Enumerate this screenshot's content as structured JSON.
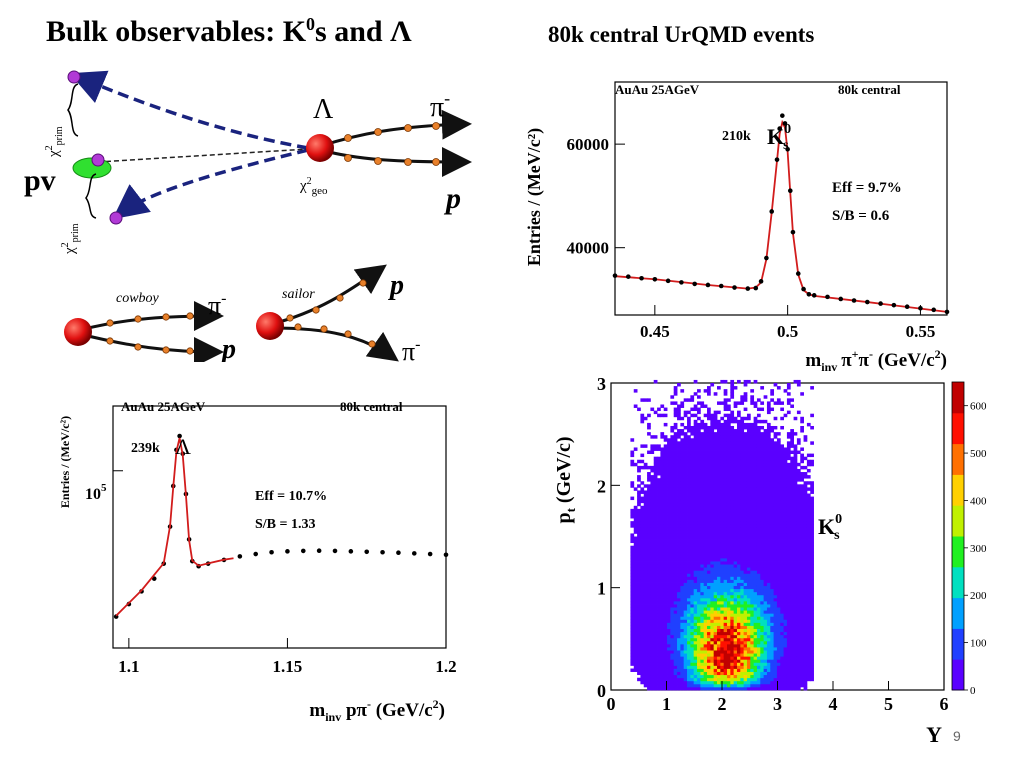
{
  "slide": {
    "title_main": "Bulk observables: K",
    "title_sup": "0",
    "title_tail": "s and Λ",
    "subtitle": "80k central UrQMD events",
    "page_number": "9"
  },
  "diagram": {
    "pv_label": "pv",
    "chi2_prim_label": "χ",
    "chi2_sup": "2",
    "prim_sub": "prim",
    "geo_sub": "geo",
    "lambda_label": "Λ",
    "pi_minus_label": "π",
    "minus_sup": "-",
    "p_label": "p",
    "cowboy_label": "cowboy",
    "sailor_label": "sailor"
  },
  "chart_data": [
    {
      "type": "line",
      "header_left": "AuAu 25AGeV",
      "header_right": "80k central",
      "ylabel": "Entries / (MeV/c²)",
      "xlabel": "m_inv π⁺π⁻ (GeV/c²)",
      "xlabel_parts": {
        "m": "m",
        "inv": "inv",
        "pi": "π",
        "plus": "+",
        "minus": "-",
        "unit": " (GeV/c",
        "sq": "2",
        "close": ")"
      },
      "xticks": [
        "0.45",
        "0.5",
        "0.55"
      ],
      "yticks": [
        "40000",
        "60000"
      ],
      "xlim": [
        0.435,
        0.56
      ],
      "ylim": [
        27000,
        72000
      ],
      "annotation_count": "210k",
      "annotation_particle": "K",
      "annotation_sup": "0",
      "annotation_sub": "s",
      "eff": "Eff = 9.7%",
      "sb": "S/B = 0.6",
      "series": [
        {
          "name": "data",
          "x": [
            0.435,
            0.44,
            0.445,
            0.45,
            0.455,
            0.46,
            0.465,
            0.47,
            0.475,
            0.48,
            0.485,
            0.488,
            0.49,
            0.492,
            0.494,
            0.496,
            0.497,
            0.498,
            0.499,
            0.5,
            0.501,
            0.502,
            0.504,
            0.506,
            0.508,
            0.51,
            0.515,
            0.52,
            0.525,
            0.53,
            0.535,
            0.54,
            0.545,
            0.55,
            0.555,
            0.56
          ],
          "y": [
            34600,
            34400,
            34100,
            33900,
            33600,
            33300,
            33000,
            32800,
            32600,
            32300,
            32100,
            32200,
            33500,
            38000,
            47000,
            57000,
            63000,
            65500,
            64000,
            59000,
            51000,
            43000,
            35000,
            32000,
            31000,
            30800,
            30500,
            30100,
            29800,
            29500,
            29200,
            28900,
            28600,
            28300,
            28000,
            27600
          ]
        },
        {
          "name": "fit",
          "x": [
            0.435,
            0.45,
            0.47,
            0.485,
            0.488,
            0.49,
            0.492,
            0.494,
            0.496,
            0.497,
            0.498,
            0.499,
            0.5,
            0.501,
            0.502,
            0.504,
            0.506,
            0.508,
            0.51,
            0.53,
            0.56
          ],
          "y": [
            34500,
            33900,
            32800,
            32100,
            32300,
            33300,
            37800,
            46800,
            56800,
            62000,
            64200,
            63200,
            58500,
            50500,
            42800,
            34800,
            31800,
            31000,
            30700,
            29500,
            27600
          ]
        }
      ]
    },
    {
      "type": "line",
      "header_left": "AuAu 25AGeV",
      "header_right": "80k central",
      "ylabel": "Entries / (MeV/c²)",
      "xlabel": "m_inv pπ⁻ (GeV/c²)",
      "xlabel_parts": {
        "m": "m",
        "inv": "inv",
        "p": " pπ",
        "minus": "-",
        "unit": " (GeV/c",
        "sq": "2",
        "close": ")"
      },
      "xticks": [
        "1.1",
        "1.15",
        "1.2"
      ],
      "ytick_base": "10",
      "ytick_exp": "5",
      "ylog": true,
      "xlim": [
        1.095,
        1.2
      ],
      "annotation_count": "239k",
      "annotation_particle": "Λ",
      "eff": "Eff = 10.7%",
      "sb": "S/B = 1.33",
      "series": [
        {
          "name": "data",
          "x": [
            1.096,
            1.1,
            1.104,
            1.108,
            1.111,
            1.113,
            1.114,
            1.115,
            1.116,
            1.117,
            1.118,
            1.119,
            1.12,
            1.122,
            1.125,
            1.13,
            1.135,
            1.14,
            1.145,
            1.15,
            1.155,
            1.16,
            1.165,
            1.17,
            1.175,
            1.18,
            1.185,
            1.19,
            1.195,
            1.2
          ],
          "y": [
            21000,
            24000,
            27500,
            31500,
            37000,
            55000,
            85000,
            125000,
            145000,
            120000,
            78000,
            48000,
            38000,
            36000,
            37000,
            38500,
            40000,
            41000,
            41800,
            42200,
            42400,
            42500,
            42400,
            42200,
            42000,
            41800,
            41600,
            41300,
            41000,
            40700
          ]
        },
        {
          "name": "fit",
          "x": [
            1.096,
            1.104,
            1.111,
            1.113,
            1.114,
            1.115,
            1.116,
            1.117,
            1.118,
            1.119,
            1.12,
            1.122,
            1.125,
            1.13,
            1.133
          ],
          "y": [
            21200,
            27800,
            37200,
            55500,
            84000,
            123000,
            142000,
            118000,
            77000,
            47500,
            38200,
            36200,
            37100,
            38600,
            39200
          ]
        }
      ]
    },
    {
      "type": "heatmap",
      "xlabel": "Y",
      "ylabel": "p_t (GeV/c)",
      "ylabel_parts": {
        "p": "p",
        "t": "t",
        "unit": " (GeV/c)"
      },
      "xticks": [
        "0",
        "1",
        "2",
        "3",
        "4",
        "5",
        "6"
      ],
      "yticks": [
        "0",
        "1",
        "2",
        "3"
      ],
      "xlim": [
        0,
        6
      ],
      "ylim": [
        0,
        3
      ],
      "particle": "K",
      "particle_sup": "0",
      "particle_sub": "s",
      "colorbar_ticks": [
        "0",
        "100",
        "200",
        "300",
        "400",
        "500",
        "600"
      ],
      "colorbar_range": [
        0,
        650
      ],
      "peak": {
        "y": 2.05,
        "pt": 0.45,
        "count": 650
      },
      "colors": [
        "#5a00ff",
        "#2040ff",
        "#00a0ff",
        "#00e0c0",
        "#20f020",
        "#c0f000",
        "#ffd000",
        "#ff7000",
        "#ff1000",
        "#c00000"
      ]
    }
  ]
}
